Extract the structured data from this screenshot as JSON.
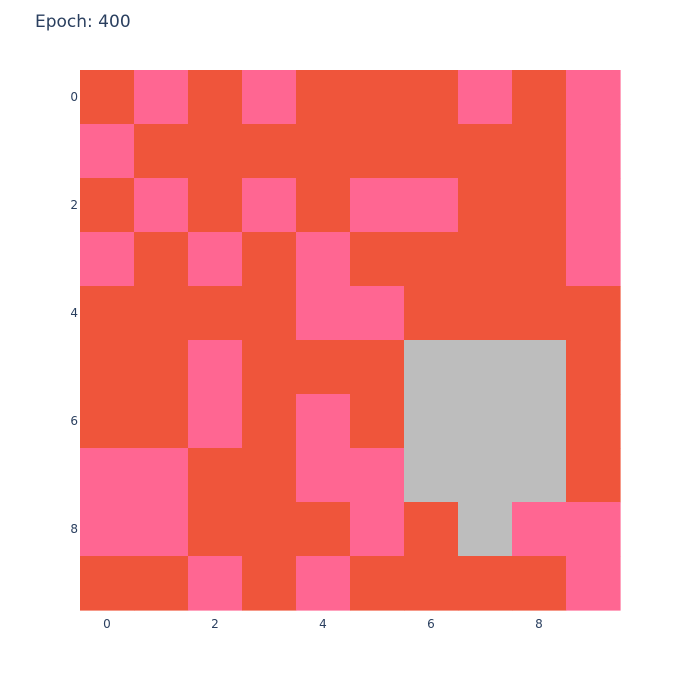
{
  "chart_data": {
    "type": "heatmap",
    "title": "Epoch: 400",
    "xlabel": "",
    "ylabel": "",
    "x_range": [
      -0.5,
      9.5
    ],
    "y_range": [
      -0.5,
      9.5
    ],
    "y_reversed": true,
    "x_ticks": [
      "0",
      "2",
      "4",
      "6",
      "8"
    ],
    "y_ticks": [
      "0",
      "2",
      "4",
      "6",
      "8"
    ],
    "x_tick_values": [
      0,
      2,
      4,
      6,
      8
    ],
    "y_tick_values": [
      0,
      2,
      4,
      6,
      8
    ],
    "grid": false,
    "legend": "none",
    "colors": {
      "0": "#ef553b",
      "1": "#ff6692",
      "2": "#bdbdbd"
    },
    "z": [
      [
        0,
        1,
        0,
        1,
        0,
        0,
        0,
        1,
        0,
        1
      ],
      [
        1,
        0,
        0,
        0,
        0,
        0,
        0,
        0,
        0,
        1
      ],
      [
        0,
        1,
        0,
        1,
        0,
        1,
        1,
        0,
        0,
        1
      ],
      [
        1,
        0,
        1,
        0,
        1,
        0,
        0,
        0,
        0,
        1
      ],
      [
        0,
        0,
        0,
        0,
        1,
        1,
        0,
        0,
        0,
        0
      ],
      [
        0,
        0,
        1,
        0,
        0,
        0,
        2,
        2,
        2,
        0
      ],
      [
        0,
        0,
        1,
        0,
        1,
        0,
        2,
        2,
        2,
        0
      ],
      [
        1,
        1,
        0,
        0,
        1,
        1,
        2,
        2,
        2,
        0
      ],
      [
        1,
        1,
        0,
        0,
        0,
        1,
        0,
        2,
        1,
        1
      ],
      [
        0,
        0,
        1,
        0,
        1,
        0,
        0,
        0,
        0,
        1
      ]
    ]
  }
}
